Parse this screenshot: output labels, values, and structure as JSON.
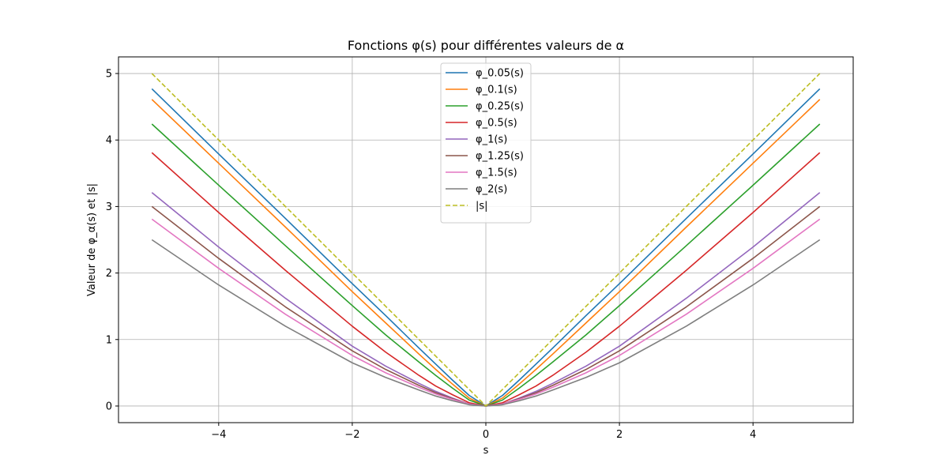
{
  "chart_data": {
    "type": "line",
    "title": "Fonctions φ(s) pour différentes valeurs de α",
    "xlabel": "s",
    "ylabel": "Valeur de φ_α(s) et |s|",
    "xlim": [
      -5.5,
      5.5
    ],
    "ylim": [
      -0.25,
      5.25
    ],
    "xticks": [
      -4,
      -2,
      0,
      2,
      4
    ],
    "xtick_labels": [
      "−4",
      "−2",
      "0",
      "2",
      "4"
    ],
    "yticks": [
      0,
      1,
      2,
      3,
      4,
      5
    ],
    "ytick_labels": [
      "0",
      "1",
      "2",
      "3",
      "4",
      "5"
    ],
    "grid": true,
    "legend_position": "top-center",
    "x": [
      -5,
      -4,
      -3,
      -2,
      -1.5,
      -1,
      -0.75,
      -0.5,
      -0.25,
      0,
      0.25,
      0.5,
      0.75,
      1,
      1.5,
      2,
      3,
      4,
      5
    ],
    "series": [
      {
        "name": "φ_0.05(s)",
        "color": "#1f77b4",
        "dash": "solid",
        "values": [
          4.77,
          3.79,
          2.82,
          1.84,
          1.36,
          0.87,
          0.63,
          0.39,
          0.16,
          0,
          0.16,
          0.39,
          0.63,
          0.87,
          1.36,
          1.84,
          2.82,
          3.79,
          4.77
        ]
      },
      {
        "name": "φ_0.1(s)",
        "color": "#ff7f0e",
        "dash": "solid",
        "values": [
          4.61,
          3.65,
          2.69,
          1.72,
          1.25,
          0.78,
          0.55,
          0.33,
          0.12,
          0,
          0.12,
          0.33,
          0.55,
          0.78,
          1.25,
          1.72,
          2.69,
          3.65,
          4.61
        ]
      },
      {
        "name": "φ_0.25(s)",
        "color": "#2ca02c",
        "dash": "solid",
        "values": [
          4.24,
          3.32,
          2.41,
          1.51,
          1.07,
          0.66,
          0.46,
          0.27,
          0.09,
          0,
          0.09,
          0.27,
          0.46,
          0.66,
          1.07,
          1.51,
          2.41,
          3.32,
          4.24
        ]
      },
      {
        "name": "φ_0.5(s)",
        "color": "#d62728",
        "dash": "solid",
        "values": [
          3.81,
          2.91,
          2.04,
          1.2,
          0.81,
          0.46,
          0.3,
          0.17,
          0.05,
          0,
          0.05,
          0.17,
          0.3,
          0.46,
          0.81,
          1.2,
          2.04,
          2.91,
          3.81
        ]
      },
      {
        "name": "φ_1(s)",
        "color": "#9467bd",
        "dash": "solid",
        "values": [
          3.21,
          2.39,
          1.62,
          0.9,
          0.6,
          0.34,
          0.22,
          0.12,
          0.03,
          0,
          0.03,
          0.12,
          0.22,
          0.34,
          0.6,
          0.9,
          1.62,
          2.39,
          3.21
        ]
      },
      {
        "name": "φ_1.25(s)",
        "color": "#8c564b",
        "dash": "solid",
        "values": [
          3.0,
          2.22,
          1.49,
          0.83,
          0.55,
          0.31,
          0.2,
          0.11,
          0.03,
          0,
          0.03,
          0.11,
          0.2,
          0.31,
          0.55,
          0.83,
          1.49,
          2.22,
          3.0
        ]
      },
      {
        "name": "φ_1.5(s)",
        "color": "#e377c2",
        "dash": "solid",
        "values": [
          2.81,
          2.07,
          1.38,
          0.76,
          0.5,
          0.28,
          0.18,
          0.1,
          0.03,
          0,
          0.03,
          0.1,
          0.18,
          0.28,
          0.5,
          0.76,
          1.38,
          2.07,
          2.81
        ]
      },
      {
        "name": "φ_2(s)",
        "color": "#7f7f7f",
        "dash": "solid",
        "values": [
          2.5,
          1.82,
          1.2,
          0.65,
          0.43,
          0.24,
          0.15,
          0.08,
          0.02,
          0,
          0.02,
          0.08,
          0.15,
          0.24,
          0.43,
          0.65,
          1.2,
          1.82,
          2.5
        ]
      },
      {
        "name": "|s|",
        "color": "#bcbd22",
        "dash": "dashed",
        "values": [
          5,
          4,
          3,
          2,
          1.5,
          1,
          0.75,
          0.5,
          0.25,
          0,
          0.25,
          0.5,
          0.75,
          1,
          1.5,
          2,
          3,
          4,
          5
        ]
      }
    ]
  }
}
